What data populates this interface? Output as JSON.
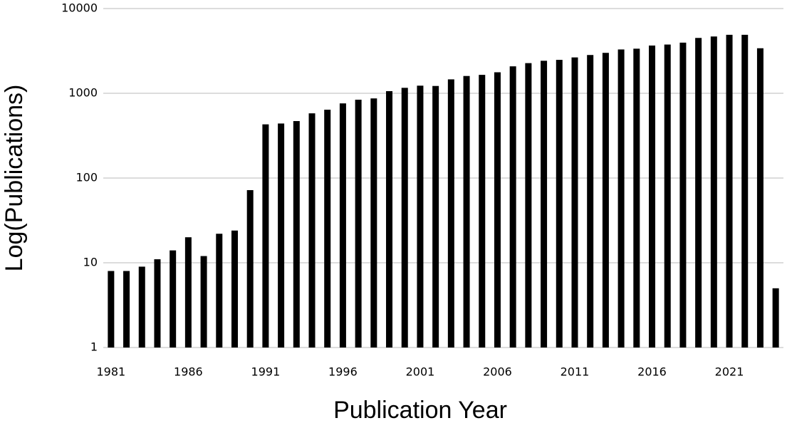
{
  "chart_data": {
    "type": "bar",
    "log_scale": true,
    "grid": true,
    "color": "#000000",
    "x_label": "Publication Year",
    "y_label": "Log(Publications)",
    "categories": [
      "1981",
      null,
      null,
      null,
      null,
      "1986",
      null,
      null,
      null,
      null,
      "1991",
      null,
      null,
      null,
      null,
      "1996",
      null,
      null,
      null,
      null,
      "2001",
      null,
      null,
      null,
      null,
      "2006",
      null,
      null,
      null,
      null,
      "2011",
      null,
      null,
      null,
      null,
      "2016",
      null,
      null,
      null,
      null,
      "2021",
      null,
      null,
      null
    ],
    "values": [
      8,
      8,
      9,
      11,
      14,
      20,
      12,
      22,
      24,
      72,
      430,
      440,
      470,
      580,
      640,
      760,
      840,
      870,
      1060,
      1160,
      1230,
      1220,
      1460,
      1600,
      1650,
      1770,
      2080,
      2270,
      2420,
      2480,
      2650,
      2830,
      3000,
      3290,
      3360,
      3660,
      3760,
      3960,
      4500,
      4680,
      4900,
      4900,
      3400,
      5
    ],
    "ylim": [
      1,
      10000
    ],
    "yticks": [
      1,
      10,
      100,
      1000,
      10000
    ]
  }
}
